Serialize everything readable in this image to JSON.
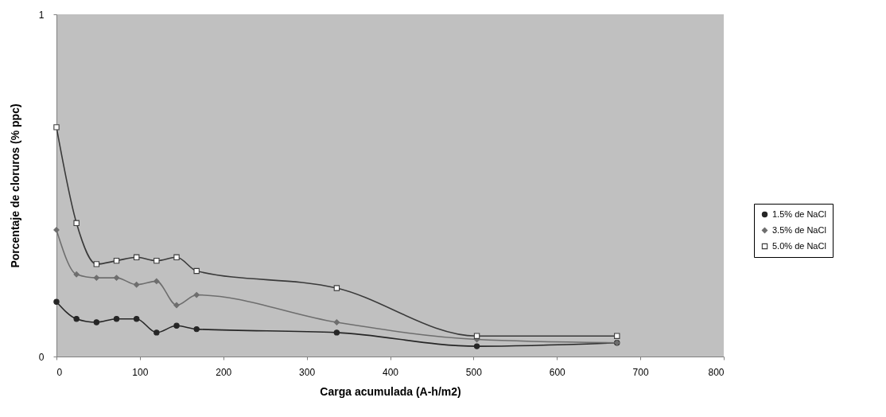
{
  "chart_data": {
    "type": "line",
    "xlabel": "Carga acumulada (A-h/m2)",
    "ylabel": "Porcentaje de cloruros (% ppc)",
    "x": [
      0,
      24,
      48,
      72,
      96,
      120,
      144,
      168,
      336,
      504,
      672
    ],
    "series": [
      {
        "name": "1.5% de NaCl",
        "color": "#262626",
        "marker": "circle",
        "values": [
          0.16,
          0.11,
          0.1,
          0.11,
          0.11,
          0.07,
          0.09,
          0.08,
          0.07,
          0.03,
          0.04
        ]
      },
      {
        "name": "3.5% de NaCl",
        "color": "#6e6e6e",
        "marker": "diamond",
        "values": [
          0.37,
          0.24,
          0.23,
          0.23,
          0.21,
          0.22,
          0.15,
          0.18,
          0.1,
          0.05,
          0.04
        ]
      },
      {
        "name": "5.0% de NaCl",
        "color": "#3a3a3a",
        "marker": "square",
        "values": [
          0.67,
          0.39,
          0.27,
          0.28,
          0.29,
          0.28,
          0.29,
          0.25,
          0.2,
          0.06,
          0.06
        ]
      }
    ],
    "xlim": [
      0,
      800
    ],
    "xticks": [
      0,
      100,
      200,
      300,
      400,
      500,
      600,
      700,
      800
    ],
    "ylim": [
      0,
      1
    ],
    "yticks": [
      0,
      1
    ],
    "legend": "right"
  }
}
